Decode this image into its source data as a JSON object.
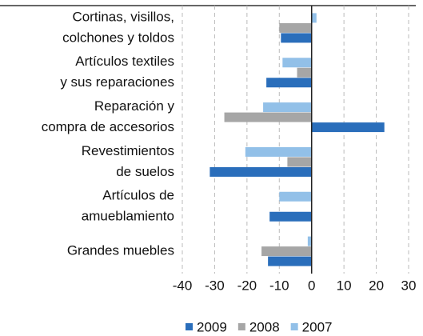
{
  "chart_data": {
    "type": "hbar",
    "categories": [
      [
        "Cortinas, visillos,",
        "colchones y toldos"
      ],
      [
        "Artículos textiles",
        "y sus reparaciones"
      ],
      [
        "Reparación y",
        "compra de accesorios"
      ],
      [
        "Revestimientos",
        "de suelos"
      ],
      [
        "Artículos de",
        "amueblamiento"
      ],
      [
        "Grandes muebles"
      ]
    ],
    "series": [
      {
        "name": "2009",
        "color": "#2a6ebb",
        "values": [
          -9.5,
          -14,
          22.5,
          -31.5,
          -13,
          -13.5
        ]
      },
      {
        "name": "2008",
        "color": "#a6a6a6",
        "values": [
          -10,
          -4.5,
          -27,
          -7.5,
          -0.2,
          -15.5
        ]
      },
      {
        "name": "2007",
        "color": "#92c0e8",
        "values": [
          1.5,
          -9,
          -15,
          -20.5,
          -10,
          -1.2
        ]
      }
    ],
    "xlim": [
      -40,
      30
    ],
    "xticks": [
      -40,
      -30,
      -20,
      -10,
      0,
      10,
      20,
      30
    ],
    "grid": true,
    "legend": "bottom"
  }
}
